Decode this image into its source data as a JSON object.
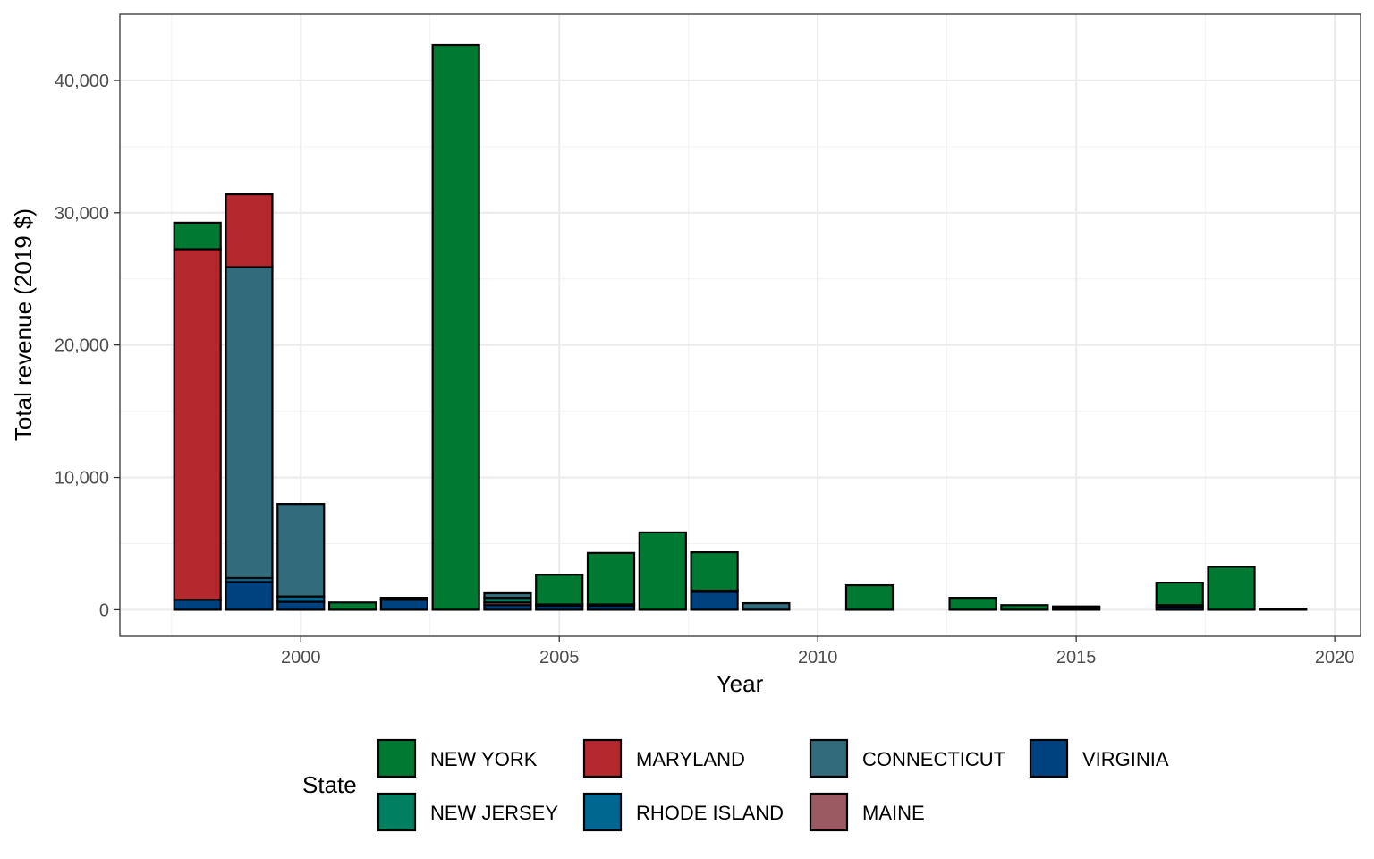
{
  "chart_data": {
    "type": "bar",
    "stacked": true,
    "title": "",
    "xlabel": "Year",
    "ylabel": "Total revenue (2019 $)",
    "xlim": [
      1996.5,
      2020.5
    ],
    "ylim": [
      -2000,
      45000
    ],
    "xticks": [
      2000,
      2005,
      2010,
      2015,
      2020
    ],
    "yticks": [
      0,
      10000,
      20000,
      30000,
      40000
    ],
    "ytick_labels": [
      "0",
      "10,000",
      "20,000",
      "30,000",
      "40,000"
    ],
    "grid": true,
    "legend": {
      "title": "State",
      "placement": "bottom",
      "entries": [
        "NEW YORK",
        "MARYLAND",
        "CONNECTICUT",
        "VIRGINIA",
        "NEW JERSEY",
        "RHODE ISLAND",
        "MAINE"
      ]
    },
    "stack_order_bottom_to_top": [
      "VIRGINIA",
      "RHODE ISLAND",
      "MAINE",
      "NEW JERSEY",
      "CONNECTICUT",
      "MARYLAND",
      "NEW YORK"
    ],
    "colors": {
      "NEW YORK": "#007a33",
      "MARYLAND": "#b5282e",
      "CONNECTICUT": "#316b7c",
      "VIRGINIA": "#00427f",
      "NEW JERSEY": "#008060",
      "RHODE ISLAND": "#006791",
      "MAINE": "#9b5a62"
    },
    "years": [
      1998,
      1999,
      2000,
      2001,
      2002,
      2003,
      2004,
      2005,
      2006,
      2007,
      2008,
      2009,
      2011,
      2013,
      2014,
      2015,
      2017,
      2018,
      2019
    ],
    "series": [
      {
        "name": "NEW YORK",
        "values": [
          2000,
          0,
          0,
          550,
          50,
          42700,
          0,
          2250,
          3900,
          5850,
          2900,
          0,
          1850,
          900,
          350,
          0,
          1700,
          3250,
          80
        ]
      },
      {
        "name": "MARYLAND",
        "values": [
          26500,
          5500,
          0,
          0,
          0,
          0,
          0,
          0,
          0,
          0,
          0,
          0,
          0,
          0,
          0,
          0,
          0,
          0,
          0
        ]
      },
      {
        "name": "CONNECTICUT",
        "values": [
          0,
          23500,
          7000,
          0,
          0,
          0,
          350,
          0,
          0,
          0,
          100,
          500,
          0,
          0,
          0,
          0,
          0,
          0,
          0
        ]
      },
      {
        "name": "NEW JERSEY",
        "values": [
          0,
          0,
          0,
          0,
          0,
          0,
          350,
          0,
          0,
          0,
          0,
          0,
          0,
          0,
          0,
          100,
          0,
          0,
          0
        ]
      },
      {
        "name": "MAINE",
        "values": [
          0,
          0,
          0,
          0,
          0,
          0,
          200,
          0,
          0,
          0,
          0,
          0,
          0,
          0,
          0,
          0,
          150,
          0,
          0
        ]
      },
      {
        "name": "RHODE ISLAND",
        "values": [
          0,
          300,
          400,
          0,
          100,
          0,
          0,
          100,
          100,
          0,
          0,
          0,
          0,
          0,
          0,
          0,
          0,
          0,
          0
        ]
      },
      {
        "name": "VIRGINIA",
        "values": [
          750,
          2100,
          600,
          0,
          750,
          0,
          350,
          300,
          300,
          0,
          1350,
          0,
          0,
          0,
          0,
          150,
          200,
          0,
          0
        ]
      }
    ]
  }
}
